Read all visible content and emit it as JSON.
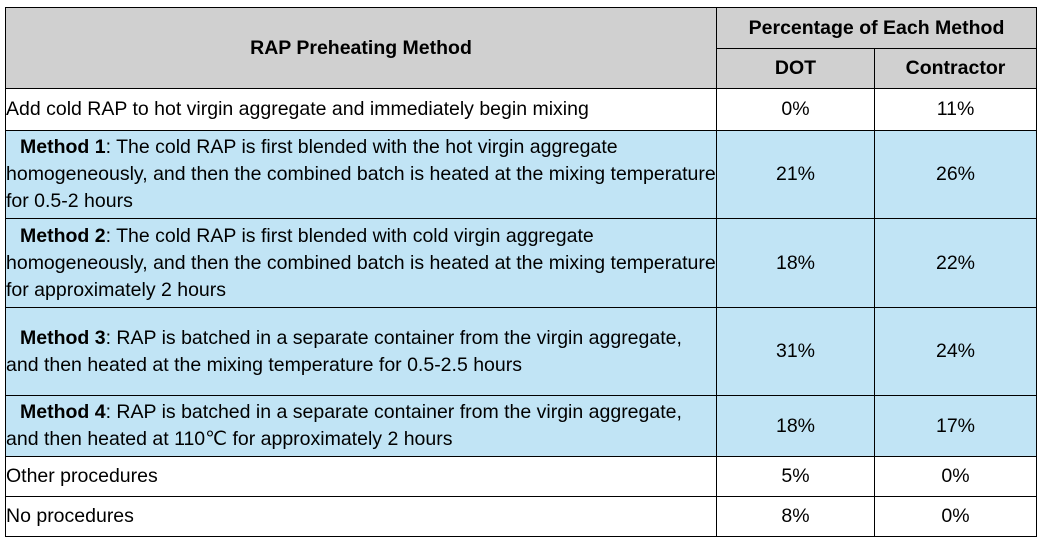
{
  "table": {
    "header": {
      "method_col": "RAP Preheating Method",
      "group_col": "Percentage of Each Method",
      "dot_col": "DOT",
      "contractor_col": "Contractor"
    },
    "rows": [
      {
        "label": "",
        "text": "Add cold RAP to hot virgin aggregate and immediately begin mixing",
        "dot": "0%",
        "contractor": "11%"
      },
      {
        "label": "Method 1",
        "text": ": The cold RAP is first blended with the hot virgin aggregate homogeneously, and then the combined batch is heated at the mixing temperature for 0.5-2 hours",
        "dot": "21%",
        "contractor": "26%"
      },
      {
        "label": "Method 2",
        "text": ": The cold RAP is first blended with cold virgin aggregate homogeneously, and then the combined batch is heated at the mixing temperature for approximately 2 hours",
        "dot": "18%",
        "contractor": "22%"
      },
      {
        "label": "Method 3",
        "text": ": RAP is batched in a separate container from the virgin aggregate, and then heated at the mixing temperature for 0.5-2.5 hours",
        "dot": "31%",
        "contractor": "24%"
      },
      {
        "label": "Method 4",
        "text": ": RAP is batched in a separate container from the virgin aggregate, and then heated at 110℃ for approximately 2 hours",
        "dot": "18%",
        "contractor": "17%"
      },
      {
        "label": "",
        "text": "Other procedures",
        "dot": "5%",
        "contractor": "0%"
      },
      {
        "label": "",
        "text": "No procedures",
        "dot": "8%",
        "contractor": "0%"
      }
    ]
  }
}
